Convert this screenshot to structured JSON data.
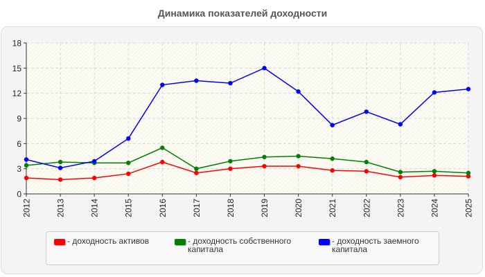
{
  "chart_data": {
    "type": "line",
    "title": "Динамика показателей доходности",
    "categories": [
      "2012",
      "2013",
      "2014",
      "2015",
      "2016",
      "2017",
      "2018",
      "2019",
      "2020",
      "2021",
      "2022",
      "2023",
      "2024",
      "2025"
    ],
    "ylim": [
      0,
      18
    ],
    "yticks": [
      0,
      3,
      6,
      9,
      12,
      15,
      18
    ],
    "grid": true,
    "legend_position": "bottom",
    "series": [
      {
        "name": "- доходность активов",
        "color": "#ff0000",
        "values": [
          1.9,
          1.7,
          1.9,
          2.4,
          3.8,
          2.5,
          3.0,
          3.3,
          3.3,
          2.8,
          2.7,
          2.0,
          2.2,
          2.1
        ]
      },
      {
        "name": "- доходность собственного капитала",
        "color": "#008000",
        "values": [
          3.4,
          3.8,
          3.7,
          3.7,
          5.5,
          3.0,
          3.9,
          4.4,
          4.5,
          4.2,
          3.8,
          2.6,
          2.7,
          2.5
        ]
      },
      {
        "name": "- доходность заемного капитала",
        "color": "#0000ff",
        "values": [
          4.1,
          3.1,
          3.9,
          6.6,
          13.0,
          13.5,
          13.2,
          15.0,
          12.2,
          8.2,
          9.8,
          8.3,
          12.1,
          12.5
        ]
      }
    ]
  },
  "legend": {
    "items": [
      {
        "line1": "- доходность активов",
        "line2": ""
      },
      {
        "line1": "- доходность собственного",
        "line2": "капитала"
      },
      {
        "line1": "- доходность заемного",
        "line2": "капитала"
      }
    ]
  }
}
